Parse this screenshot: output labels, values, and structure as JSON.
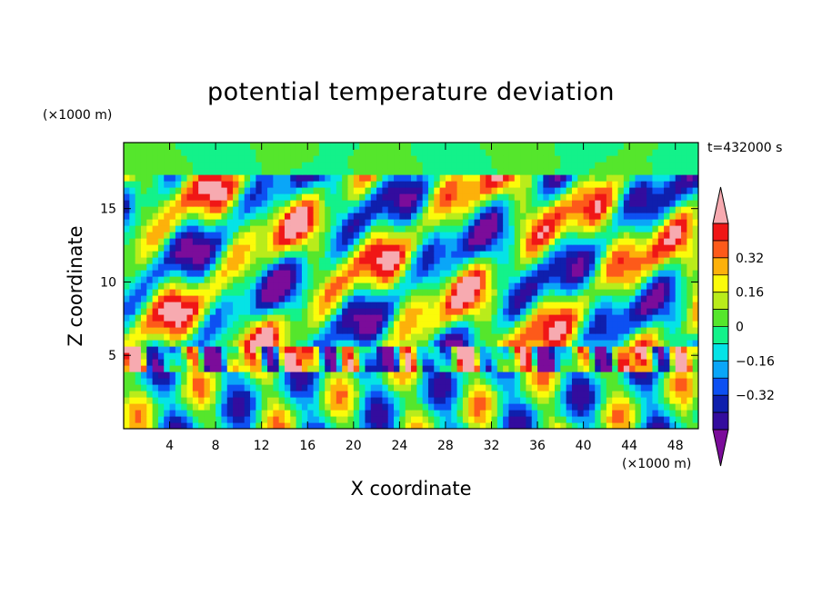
{
  "chart_data": {
    "type": "heatmap",
    "title": "potential temperature deviation",
    "xlabel": "X coordinate",
    "ylabel": "Z coordinate",
    "x_unit": "(×1000 m)",
    "y_unit": "(×1000 m)",
    "time_label": "t=432000 s",
    "xlim": [
      0,
      50
    ],
    "ylim": [
      0,
      19.5
    ],
    "x_ticks": [
      4,
      8,
      12,
      16,
      20,
      24,
      28,
      32,
      36,
      40,
      44,
      48
    ],
    "y_ticks": [
      5,
      10,
      15
    ],
    "colorbar": {
      "levels": [
        -0.48,
        -0.4,
        -0.32,
        -0.24,
        -0.16,
        -0.08,
        0,
        0.08,
        0.16,
        0.24,
        0.32,
        0.4,
        0.48
      ],
      "colors": [
        "#7b0c9a",
        "#330c9e",
        "#0f1fad",
        "#0d50f2",
        "#0aa6f8",
        "#05e3e6",
        "#13f28a",
        "#55e62c",
        "#b9ec1b",
        "#fbfb0a",
        "#fdb10a",
        "#fd5a1a",
        "#f01616",
        "#f7aab0"
      ],
      "tick_values": [
        0.32,
        0.16,
        0,
        -0.16,
        -0.32
      ],
      "tick_labels": [
        "0.32",
        "0.16",
        "0",
        "−0.16",
        "−0.32"
      ],
      "extend": "both"
    },
    "grid": false
  }
}
